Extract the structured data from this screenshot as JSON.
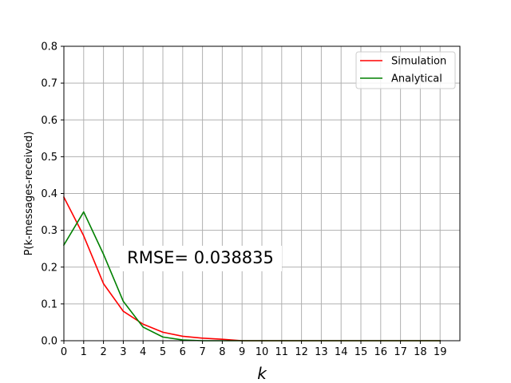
{
  "chart_data": {
    "type": "line",
    "xlabel": "k",
    "ylabel": "P(k-messages-received)",
    "xlim": [
      0,
      20
    ],
    "ylim": [
      0,
      0.8
    ],
    "x_ticks": [
      0,
      1,
      2,
      3,
      4,
      5,
      6,
      7,
      8,
      9,
      10,
      11,
      12,
      13,
      14,
      15,
      16,
      17,
      18,
      19
    ],
    "y_ticks": [
      0.0,
      0.1,
      0.2,
      0.3,
      0.4,
      0.5,
      0.6,
      0.7,
      0.8
    ],
    "y_tick_labels": [
      "0.0",
      "0.1",
      "0.2",
      "0.3",
      "0.4",
      "0.5",
      "0.6",
      "0.7",
      "0.8"
    ],
    "grid": true,
    "legend_position": "top-right",
    "x": [
      0,
      1,
      2,
      3,
      4,
      5,
      6,
      7,
      8,
      9,
      10,
      11,
      12,
      13,
      14,
      15,
      16,
      17,
      18,
      19
    ],
    "series": [
      {
        "name": "Simulation",
        "color": "#ff0000",
        "values": [
          0.39,
          0.285,
          0.155,
          0.08,
          0.045,
          0.023,
          0.012,
          0.007,
          0.004,
          0.0,
          0.0,
          0.0,
          0.0,
          0.0,
          0.0,
          0.0,
          0.0,
          0.0,
          0.0,
          0.0
        ]
      },
      {
        "name": "Analytical",
        "color": "#008000",
        "values": [
          0.26,
          0.35,
          0.235,
          0.107,
          0.037,
          0.01,
          0.002,
          0.0,
          0.0,
          0.0,
          0.0,
          0.0,
          0.0,
          0.0,
          0.0,
          0.0,
          0.0,
          0.0,
          0.0,
          0.0
        ]
      }
    ],
    "annotation": "RMSE= 0.038835"
  }
}
